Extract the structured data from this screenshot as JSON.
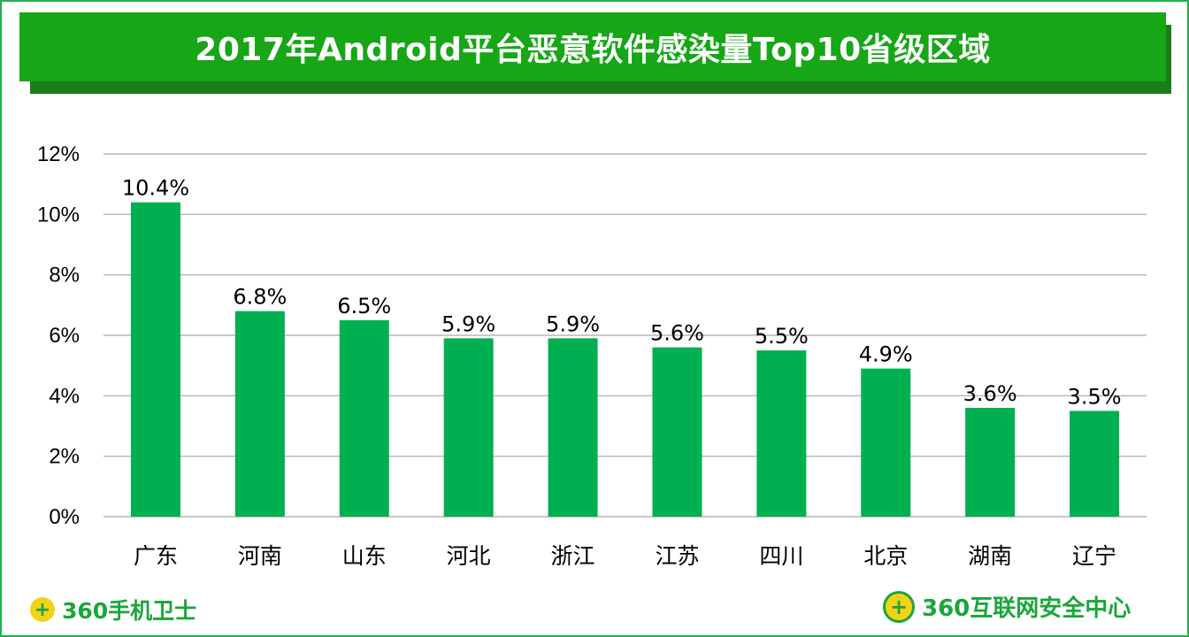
{
  "header": {
    "title": "2017年Android平台恶意软件感染量Top10省级区域"
  },
  "chart_data": {
    "type": "bar",
    "title": "2017年Android平台恶意软件感染量Top10省级区域",
    "categories": [
      "广东",
      "河南",
      "山东",
      "河北",
      "浙江",
      "江苏",
      "四川",
      "北京",
      "湖南",
      "辽宁"
    ],
    "values": [
      10.4,
      6.8,
      6.5,
      5.9,
      5.9,
      5.6,
      5.5,
      4.9,
      3.6,
      3.5
    ],
    "value_labels": [
      "10.4%",
      "6.8%",
      "6.5%",
      "5.9%",
      "5.9%",
      "5.6%",
      "5.5%",
      "4.9%",
      "3.6%",
      "3.5%"
    ],
    "ylim": [
      0,
      12
    ],
    "yticks": [
      0,
      2,
      4,
      6,
      8,
      10,
      12
    ],
    "ytick_labels": [
      "0%",
      "2%",
      "4%",
      "6%",
      "8%",
      "10%",
      "12%"
    ],
    "xlabel": "",
    "ylabel": "",
    "grid": true,
    "bar_color": "#00b050",
    "grid_color": "#a6a6a6"
  },
  "footer": {
    "left_logo_icon": "360-shield-plus-icon",
    "left_logo_text": "360手机卫士",
    "right_logo_icon": "360-laurel-plus-icon",
    "right_logo_text": "360互联网安全中心"
  },
  "colors": {
    "title_bar": "#16a616",
    "title_shadow": "#1a7d1a",
    "frame_border": "#22b14c",
    "logo_green": "#1aa63a",
    "logo_yellow": "#f4d21a"
  }
}
